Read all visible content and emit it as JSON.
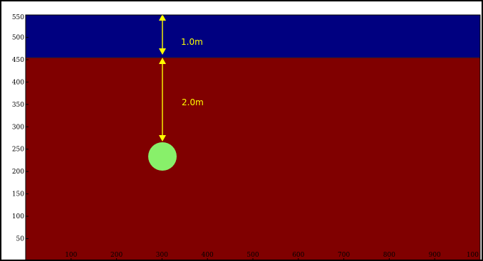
{
  "figure": {
    "x_ticks": [
      "100",
      "200",
      "300",
      "400",
      "500",
      "600",
      "700",
      "800",
      "900",
      "100"
    ],
    "y_ticks": [
      "550",
      "500",
      "450",
      "400",
      "350",
      "300",
      "250",
      "200",
      "150",
      "100",
      "50"
    ]
  },
  "layers": {
    "top": {
      "color": "#000080"
    },
    "bottom": {
      "color": "#800000"
    }
  },
  "target": {
    "color": "#88f06a"
  },
  "annotations": {
    "color": "#ffff00",
    "upper_distance_label": "1.0m",
    "lower_distance_label": "2.0m"
  }
}
